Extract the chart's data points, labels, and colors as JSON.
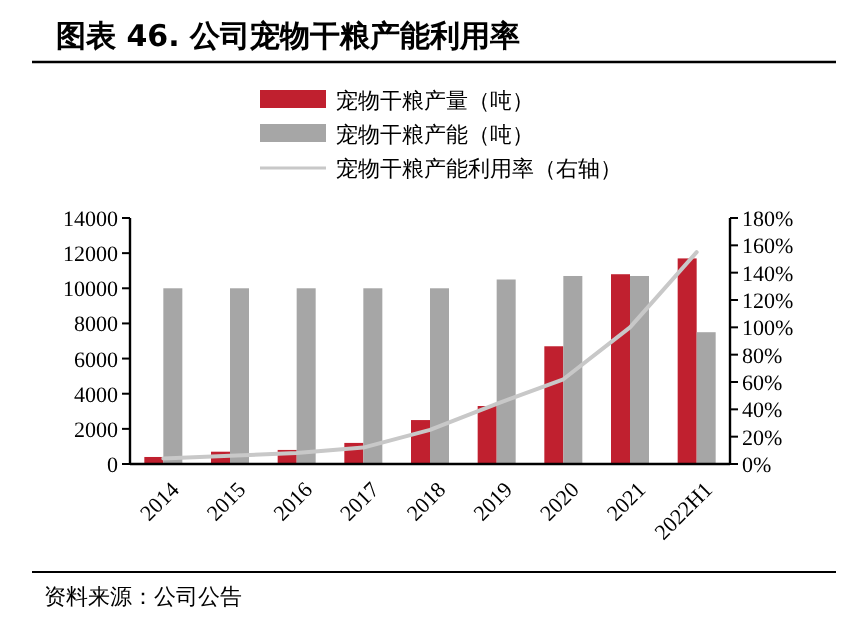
{
  "chart_data": {
    "type": "bar",
    "title": "图表 46. 公司宠物干粮产能利用率",
    "categories": [
      "2014",
      "2015",
      "2016",
      "2017",
      "2018",
      "2019",
      "2020",
      "2021",
      "2022H1"
    ],
    "series": [
      {
        "name": "宠物干粮产量（吨）",
        "color": "#c0202f",
        "values": [
          400,
          700,
          800,
          1200,
          2500,
          3300,
          6700,
          10800,
          11700
        ]
      },
      {
        "name": "宠物干粮产能（吨）",
        "color": "#a6a6a6",
        "values": [
          10000,
          10000,
          10000,
          10000,
          10000,
          10500,
          10700,
          10700,
          7500
        ]
      },
      {
        "name": "宠物干粮产能利用率（右轴）",
        "type": "line",
        "axis": "y2",
        "color": "#c8c8c8",
        "values": [
          4,
          6,
          8,
          12,
          25,
          44,
          62,
          100,
          155
        ]
      }
    ],
    "ylim": [
      0,
      14000
    ],
    "yticks": [
      0,
      2000,
      4000,
      6000,
      8000,
      10000,
      12000,
      14000
    ],
    "y2lim": [
      0,
      180
    ],
    "y2ticks": [
      {
        "value": 0,
        "label": "0%"
      },
      {
        "value": 20,
        "label": "20%"
      },
      {
        "value": 40,
        "label": "40%"
      },
      {
        "value": 60,
        "label": "60%"
      },
      {
        "value": 80,
        "label": "80%"
      },
      {
        "value": 100,
        "label": "100%"
      },
      {
        "value": 120,
        "label": "120%"
      },
      {
        "value": 140,
        "label": "140%"
      },
      {
        "value": 160,
        "label": "160%"
      },
      {
        "value": 180,
        "label": "180%"
      }
    ],
    "legend": "top",
    "grid": false,
    "marker": "none",
    "annotations": [
      "资料来源：公司公告"
    ]
  }
}
